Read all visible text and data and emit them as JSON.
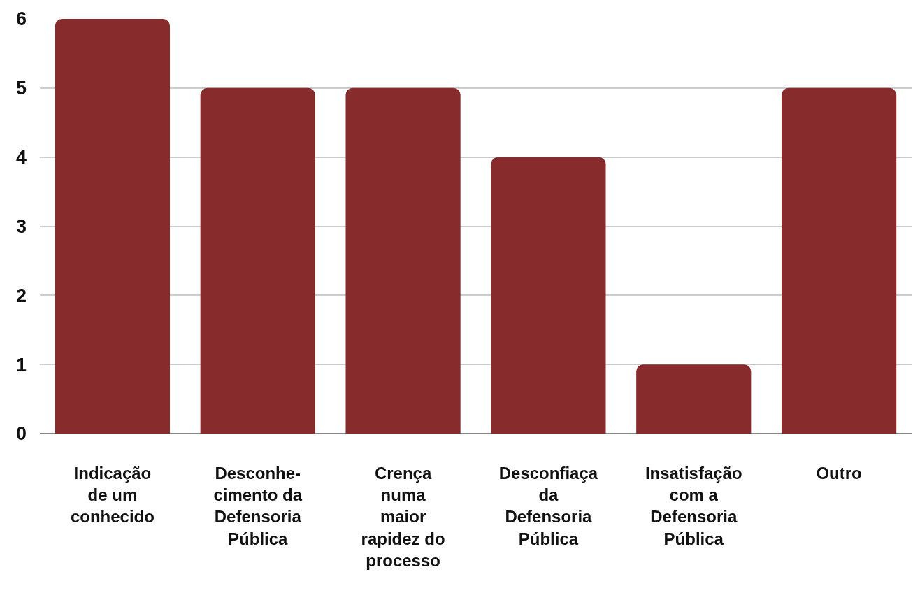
{
  "chart_data": {
    "type": "bar",
    "categories": [
      "Indicação\nde um\nconhecido",
      "Desconhe-\ncimento da\nDefensoria\nPública",
      "Crença\nnuma\nmaior\nrapidez do\nprocesso",
      "Desconfiaça\nda\nDefensoria\nPública",
      "Insatisfação\ncom a\nDefensoria\nPública",
      "Outro"
    ],
    "values": [
      6,
      5,
      5,
      4,
      1,
      5
    ],
    "color": "#872b2c",
    "ylim": [
      0,
      6
    ],
    "yticks": [
      0,
      1,
      2,
      3,
      4,
      5,
      6
    ],
    "grid": "y"
  }
}
